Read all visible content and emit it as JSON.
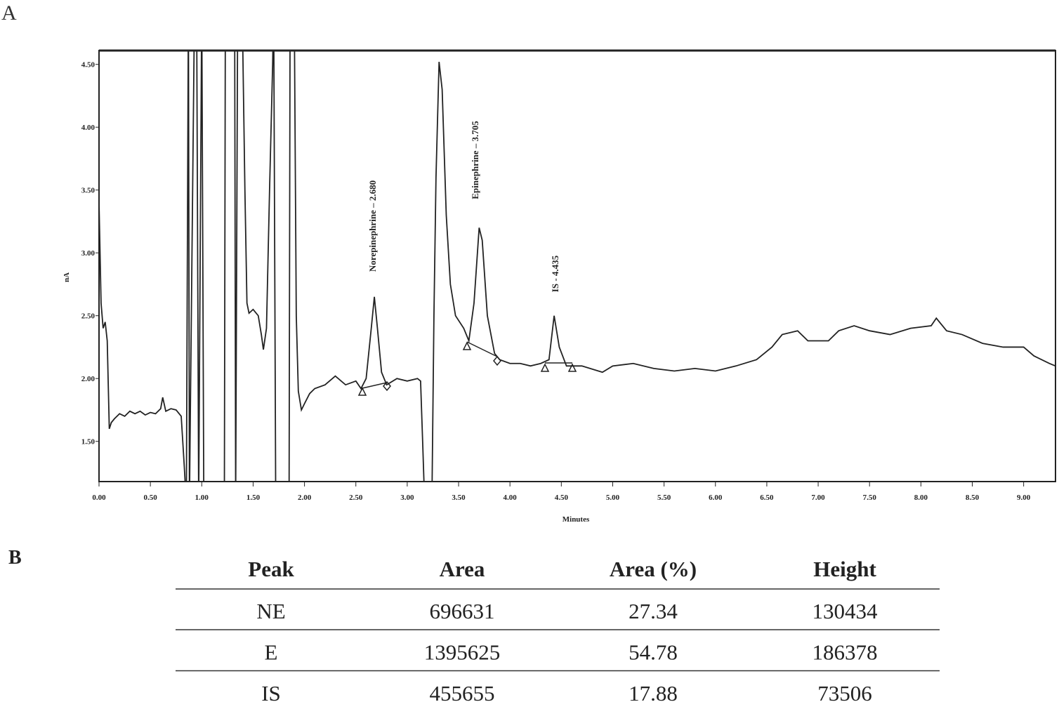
{
  "panel_a": "A",
  "panel_b": "B",
  "chart_data": {
    "type": "line",
    "x_label": "Minutes",
    "y_label": "nA",
    "xlim": [
      0,
      9.31
    ],
    "ylim": [
      1.18,
      4.61
    ],
    "xticks": [
      {
        "value": 0,
        "label": "0.00"
      },
      {
        "value": 0.5,
        "label": "0.50"
      },
      {
        "value": 1,
        "label": "1.00"
      },
      {
        "value": 1.5,
        "label": "1.50"
      },
      {
        "value": 2,
        "label": "2.00"
      },
      {
        "value": 2.5,
        "label": "2.50"
      },
      {
        "value": 3,
        "label": "3.00"
      },
      {
        "value": 3.5,
        "label": "3.50"
      },
      {
        "value": 4,
        "label": "4.00"
      },
      {
        "value": 4.5,
        "label": "4.50"
      },
      {
        "value": 5,
        "label": "5.00"
      },
      {
        "value": 5.5,
        "label": "5.50"
      },
      {
        "value": 6,
        "label": "6.00"
      },
      {
        "value": 6.5,
        "label": "6.50"
      },
      {
        "value": 7,
        "label": "7.00"
      },
      {
        "value": 7.5,
        "label": "7.50"
      },
      {
        "value": 8,
        "label": "8.00"
      },
      {
        "value": 8.5,
        "label": "8.50"
      },
      {
        "value": 9,
        "label": "9.00"
      }
    ],
    "yticks": [
      {
        "value": 1.5,
        "label": "1.50"
      },
      {
        "value": 2,
        "label": "2.00"
      },
      {
        "value": 2.5,
        "label": "2.50"
      },
      {
        "value": 3,
        "label": "3.00"
      },
      {
        "value": 3.5,
        "label": "3.50"
      },
      {
        "value": 4,
        "label": "4.00"
      },
      {
        "value": 4.5,
        "label": "4.50"
      }
    ],
    "color": "#222222",
    "annotations": [
      "Norepinephrine  – 2.680",
      "Epinephrine  – 3.705",
      "IS - 4.435"
    ],
    "x": [
      0,
      0.02,
      0.04,
      0.06,
      0.08,
      0.1,
      0.12,
      0.15,
      0.2,
      0.25,
      0.3,
      0.35,
      0.4,
      0.45,
      0.5,
      0.55,
      0.6,
      0.62,
      0.65,
      0.7,
      0.75,
      0.8,
      0.83,
      0.85,
      0.87,
      0.88,
      0.93,
      0.95,
      0.97,
      1.0,
      1.02,
      1.22,
      1.23,
      1.32,
      1.33,
      1.35,
      1.4,
      1.42,
      1.44,
      1.46,
      1.5,
      1.55,
      1.58,
      1.6,
      1.63,
      1.66,
      1.69,
      1.7,
      1.72,
      1.85,
      1.86,
      1.9,
      1.92,
      1.94,
      1.97,
      2.0,
      2.05,
      2.1,
      2.2,
      2.3,
      2.4,
      2.5,
      2.55,
      2.6,
      2.65,
      2.68,
      2.71,
      2.75,
      2.8,
      2.9,
      3.0,
      3.1,
      3.13,
      3.15,
      3.17,
      3.24,
      3.26,
      3.28,
      3.31,
      3.34,
      3.38,
      3.42,
      3.47,
      3.55,
      3.6,
      3.65,
      3.7,
      3.73,
      3.78,
      3.85,
      3.9,
      4.0,
      4.1,
      4.2,
      4.3,
      4.38,
      4.43,
      4.48,
      4.55,
      4.7,
      4.9,
      5.0,
      5.2,
      5.4,
      5.6,
      5.8,
      6.0,
      6.2,
      6.4,
      6.55,
      6.65,
      6.8,
      6.9,
      7.1,
      7.2,
      7.35,
      7.5,
      7.7,
      7.9,
      8.1,
      8.15,
      8.25,
      8.4,
      8.6,
      8.8,
      9.0,
      9.1,
      9.25,
      9.31
    ],
    "values": [
      3.4,
      2.6,
      2.4,
      2.45,
      2.3,
      1.6,
      1.65,
      1.68,
      1.72,
      1.7,
      1.74,
      1.72,
      1.74,
      1.71,
      1.73,
      1.72,
      1.76,
      1.85,
      1.74,
      1.76,
      1.75,
      1.7,
      1.3,
      1.0,
      5.0,
      1.0,
      5.0,
      5.0,
      1.0,
      5.0,
      1.0,
      1.0,
      5.0,
      5.0,
      1.0,
      5.0,
      4.6,
      3.5,
      2.6,
      2.52,
      2.55,
      2.5,
      2.35,
      2.23,
      2.4,
      3.5,
      4.5,
      5.0,
      1.0,
      1.0,
      5.0,
      5.0,
      2.5,
      1.9,
      1.75,
      1.8,
      1.88,
      1.92,
      1.95,
      2.02,
      1.95,
      1.98,
      1.92,
      2.0,
      2.4,
      2.65,
      2.4,
      2.05,
      1.95,
      2.0,
      1.98,
      2.0,
      1.98,
      1.5,
      1.0,
      1.0,
      2.5,
      3.6,
      4.52,
      4.3,
      3.3,
      2.75,
      2.5,
      2.4,
      2.3,
      2.6,
      3.2,
      3.1,
      2.5,
      2.2,
      2.15,
      2.12,
      2.12,
      2.1,
      2.12,
      2.15,
      2.5,
      2.25,
      2.1,
      2.1,
      2.05,
      2.1,
      2.12,
      2.08,
      2.06,
      2.08,
      2.06,
      2.1,
      2.15,
      2.25,
      2.35,
      2.38,
      2.3,
      2.3,
      2.38,
      2.42,
      2.38,
      2.35,
      2.4,
      2.42,
      2.48,
      2.38,
      2.35,
      2.28,
      2.25,
      2.25,
      2.18,
      2.12,
      2.1
    ]
  },
  "table": {
    "header": [
      "Peak",
      "Area",
      "Area (%)",
      "Height"
    ],
    "rows": [
      [
        "NE",
        696631,
        27.34,
        130434
      ],
      [
        "E",
        1395625,
        54.78,
        186378
      ],
      [
        "IS",
        455655,
        17.88,
        73506
      ]
    ]
  }
}
